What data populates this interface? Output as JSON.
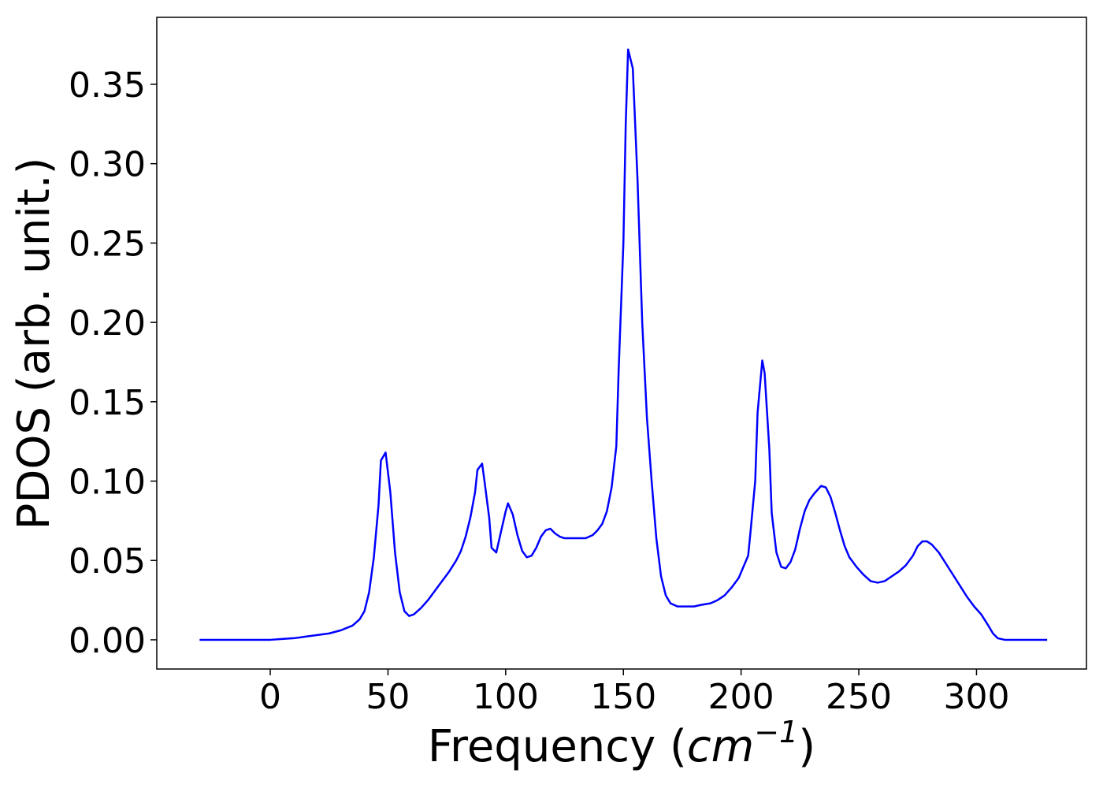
{
  "chart_data": {
    "type": "line",
    "xlabel": [
      "Frequency (",
      "cm",
      "−1",
      ")"
    ],
    "ylabel": "PDOS (arb. unit.)",
    "color": "#0000ff",
    "xlim": [
      -48.2,
      346.7
    ],
    "ylim": [
      -0.0184,
      0.3922
    ],
    "xticks": [
      0,
      50,
      100,
      150,
      200,
      250,
      300
    ],
    "yticks": [
      {
        "value": 0,
        "label": "0.00"
      },
      {
        "value": 0.05,
        "label": "0.05"
      },
      {
        "value": 0.1,
        "label": "0.10"
      },
      {
        "value": 0.15,
        "label": "0.15"
      },
      {
        "value": 0.2,
        "label": "0.20"
      },
      {
        "value": 0.25,
        "label": "0.25"
      },
      {
        "value": 0.3,
        "label": "0.30"
      },
      {
        "value": 0.35,
        "label": "0.35"
      }
    ],
    "x": [
      -30,
      0,
      5,
      10,
      15,
      20,
      25,
      30,
      35,
      38,
      40,
      42,
      44,
      46,
      47,
      49,
      51,
      53,
      55,
      57,
      59,
      61,
      64,
      67,
      70,
      73,
      76,
      79,
      81,
      83,
      85,
      87,
      88,
      90,
      91,
      93,
      94,
      96,
      98,
      100,
      101,
      103,
      105,
      107,
      109,
      111,
      113,
      115,
      117,
      119,
      121,
      123,
      125,
      128,
      131,
      134,
      137,
      139,
      141,
      143,
      145,
      147,
      148,
      150,
      151,
      152,
      154,
      156,
      158,
      160,
      162,
      164,
      166,
      168,
      170,
      173,
      177,
      180,
      183,
      187,
      190,
      193,
      196,
      199,
      201,
      203,
      204,
      206,
      207,
      209,
      210,
      212,
      213,
      215,
      217,
      219,
      221,
      223,
      225,
      227,
      229,
      231,
      234,
      236,
      238,
      240,
      242,
      244,
      246,
      249,
      252,
      255,
      258,
      261,
      264,
      267,
      270,
      273,
      275,
      277,
      279,
      281,
      284,
      287,
      290,
      293,
      296,
      299,
      302,
      305,
      307,
      309,
      312,
      330
    ],
    "values": [
      0,
      0,
      0.0005,
      0.001,
      0.002,
      0.003,
      0.004,
      0.006,
      0.009,
      0.013,
      0.018,
      0.03,
      0.052,
      0.085,
      0.113,
      0.118,
      0.093,
      0.055,
      0.03,
      0.018,
      0.015,
      0.016,
      0.02,
      0.025,
      0.031,
      0.037,
      0.043,
      0.05,
      0.056,
      0.065,
      0.077,
      0.093,
      0.107,
      0.111,
      0.1,
      0.077,
      0.058,
      0.055,
      0.068,
      0.081,
      0.086,
      0.079,
      0.066,
      0.056,
      0.052,
      0.053,
      0.058,
      0.065,
      0.069,
      0.07,
      0.067,
      0.065,
      0.064,
      0.064,
      0.064,
      0.064,
      0.066,
      0.069,
      0.073,
      0.081,
      0.096,
      0.122,
      0.17,
      0.25,
      0.325,
      0.372,
      0.36,
      0.29,
      0.2,
      0.14,
      0.1,
      0.064,
      0.04,
      0.028,
      0.023,
      0.021,
      0.021,
      0.021,
      0.022,
      0.023,
      0.025,
      0.028,
      0.033,
      0.039,
      0.046,
      0.053,
      0.068,
      0.1,
      0.143,
      0.176,
      0.168,
      0.12,
      0.08,
      0.055,
      0.046,
      0.045,
      0.049,
      0.057,
      0.07,
      0.081,
      0.088,
      0.092,
      0.097,
      0.096,
      0.09,
      0.08,
      0.069,
      0.059,
      0.052,
      0.046,
      0.041,
      0.037,
      0.036,
      0.037,
      0.04,
      0.043,
      0.047,
      0.053,
      0.059,
      0.062,
      0.062,
      0.06,
      0.055,
      0.048,
      0.041,
      0.034,
      0.027,
      0.021,
      0.016,
      0.009,
      0.004,
      0.001,
      0,
      0
    ]
  }
}
